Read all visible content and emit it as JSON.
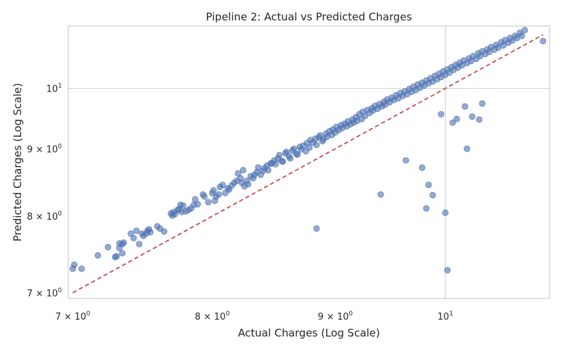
{
  "chart_data": {
    "type": "scatter",
    "title": "Pipeline 2: Actual vs Predicted Charges",
    "xlabel": "Actual Charges (Log Scale)",
    "ylabel": "Predicted Charges (Log Scale)",
    "xscale": "log",
    "yscale": "log",
    "x_ticks": [
      {
        "value": 7,
        "label_base": "7 × 10",
        "label_exp": "0"
      },
      {
        "value": 8,
        "label_base": "8 × 10",
        "label_exp": "0"
      },
      {
        "value": 9,
        "label_base": "9 × 10",
        "label_exp": "0"
      },
      {
        "value": 10,
        "label_base": "10",
        "label_exp": "1"
      }
    ],
    "y_ticks": [
      {
        "value": 7,
        "label_base": "7 × 10",
        "label_exp": "0"
      },
      {
        "value": 8,
        "label_base": "8 × 10",
        "label_exp": "0"
      },
      {
        "value": 9,
        "label_base": "9 × 10",
        "label_exp": "0"
      },
      {
        "value": 10,
        "label_base": "10",
        "label_exp": "1"
      }
    ],
    "xlim": [
      6.97,
      11.05
    ],
    "ylim": [
      6.93,
      11.15
    ],
    "grid": true,
    "colors": {
      "points": "#4c72b0",
      "reference_line": "#c44e52",
      "grid": "#d3d3d3",
      "frame": "#cccccc"
    },
    "reference_line": {
      "style": "dashed",
      "from": [
        7.0,
        7.0
      ],
      "to": [
        10.98,
        10.98
      ]
    },
    "points": [
      [
        7.0,
        7.3
      ],
      [
        7.01,
        7.35
      ],
      [
        7.06,
        7.3
      ],
      [
        7.17,
        7.47
      ],
      [
        7.24,
        7.58
      ],
      [
        7.29,
        7.45
      ],
      [
        7.3,
        7.46
      ],
      [
        7.32,
        7.63
      ],
      [
        7.32,
        7.57
      ],
      [
        7.34,
        7.62
      ],
      [
        7.34,
        7.5
      ],
      [
        7.35,
        7.64
      ],
      [
        7.4,
        7.76
      ],
      [
        7.42,
        7.7
      ],
      [
        7.44,
        7.8
      ],
      [
        7.46,
        7.62
      ],
      [
        7.48,
        7.76
      ],
      [
        7.49,
        7.73
      ],
      [
        7.51,
        7.76
      ],
      [
        7.52,
        7.8
      ],
      [
        7.53,
        7.82
      ],
      [
        7.54,
        7.78
      ],
      [
        7.59,
        7.86
      ],
      [
        7.61,
        7.83
      ],
      [
        7.64,
        7.79
      ],
      [
        7.69,
        8.04
      ],
      [
        7.7,
        8.01
      ],
      [
        7.71,
        8.06
      ],
      [
        7.72,
        8.03
      ],
      [
        7.74,
        8.09
      ],
      [
        7.75,
        8.1
      ],
      [
        7.76,
        8.16
      ],
      [
        7.77,
        8.06
      ],
      [
        7.78,
        8.15
      ],
      [
        7.8,
        8.07
      ],
      [
        7.82,
        8.09
      ],
      [
        7.84,
        8.11
      ],
      [
        7.86,
        8.16
      ],
      [
        7.87,
        8.24
      ],
      [
        7.89,
        8.17
      ],
      [
        7.93,
        8.31
      ],
      [
        7.94,
        8.28
      ],
      [
        7.97,
        8.2
      ],
      [
        8.0,
        8.33
      ],
      [
        8.01,
        8.37
      ],
      [
        8.02,
        8.22
      ],
      [
        8.03,
        8.28
      ],
      [
        8.05,
        8.31
      ],
      [
        8.06,
        8.42
      ],
      [
        8.08,
        8.45
      ],
      [
        8.1,
        8.33
      ],
      [
        8.12,
        8.4
      ],
      [
        8.13,
        8.38
      ],
      [
        8.15,
        8.44
      ],
      [
        8.17,
        8.48
      ],
      [
        8.19,
        8.51
      ],
      [
        8.2,
        8.62
      ],
      [
        8.22,
        8.55
      ],
      [
        8.23,
        8.48
      ],
      [
        8.24,
        8.67
      ],
      [
        8.25,
        8.43
      ],
      [
        8.27,
        8.51
      ],
      [
        8.28,
        8.46
      ],
      [
        8.3,
        8.58
      ],
      [
        8.32,
        8.55
      ],
      [
        8.33,
        8.6
      ],
      [
        8.35,
        8.64
      ],
      [
        8.36,
        8.71
      ],
      [
        8.38,
        8.6
      ],
      [
        8.4,
        8.66
      ],
      [
        8.41,
        8.7
      ],
      [
        8.43,
        8.74
      ],
      [
        8.44,
        8.67
      ],
      [
        8.46,
        8.77
      ],
      [
        8.47,
        8.78
      ],
      [
        8.49,
        8.82
      ],
      [
        8.5,
        8.76
      ],
      [
        8.52,
        8.85
      ],
      [
        8.53,
        8.9
      ],
      [
        8.55,
        8.81
      ],
      [
        8.56,
        8.8
      ],
      [
        8.58,
        8.93
      ],
      [
        8.59,
        8.95
      ],
      [
        8.61,
        8.88
      ],
      [
        8.62,
        8.85
      ],
      [
        8.64,
        8.97
      ],
      [
        8.65,
        9.0
      ],
      [
        8.67,
        8.92
      ],
      [
        8.68,
        8.91
      ],
      [
        8.7,
        9.03
      ],
      [
        8.71,
        8.99
      ],
      [
        8.73,
        9.05
      ],
      [
        8.75,
        8.96
      ],
      [
        8.76,
        9.09
      ],
      [
        8.78,
        9.02
      ],
      [
        8.79,
        9.14
      ],
      [
        8.81,
        9.1
      ],
      [
        8.83,
        9.16
      ],
      [
        8.84,
        9.06
      ],
      [
        8.86,
        9.18
      ],
      [
        8.87,
        9.21
      ],
      [
        8.89,
        9.12
      ],
      [
        8.9,
        9.15
      ],
      [
        8.92,
        9.24
      ],
      [
        8.93,
        9.19
      ],
      [
        8.95,
        9.28
      ],
      [
        8.97,
        9.22
      ],
      [
        8.98,
        9.31
      ],
      [
        9.0,
        9.26
      ],
      [
        9.01,
        9.35
      ],
      [
        9.03,
        9.3
      ],
      [
        9.05,
        9.38
      ],
      [
        9.06,
        9.33
      ],
      [
        9.08,
        9.4
      ],
      [
        9.1,
        9.36
      ],
      [
        9.11,
        9.44
      ],
      [
        9.13,
        9.39
      ],
      [
        9.15,
        9.47
      ],
      [
        9.16,
        9.42
      ],
      [
        9.18,
        9.51
      ],
      [
        9.19,
        9.45
      ],
      [
        9.21,
        9.56
      ],
      [
        9.23,
        9.48
      ],
      [
        9.24,
        9.6
      ],
      [
        9.26,
        9.53
      ],
      [
        9.28,
        9.63
      ],
      [
        9.3,
        9.58
      ],
      [
        9.32,
        9.66
      ],
      [
        9.33,
        9.62
      ],
      [
        9.35,
        9.7
      ],
      [
        9.37,
        9.65
      ],
      [
        9.39,
        9.73
      ],
      [
        9.41,
        9.69
      ],
      [
        9.43,
        9.77
      ],
      [
        9.44,
        9.72
      ],
      [
        9.46,
        9.81
      ],
      [
        9.48,
        9.76
      ],
      [
        9.5,
        9.84
      ],
      [
        9.52,
        9.8
      ],
      [
        9.54,
        9.88
      ],
      [
        9.56,
        9.83
      ],
      [
        9.58,
        9.92
      ],
      [
        9.6,
        9.87
      ],
      [
        9.62,
        9.95
      ],
      [
        9.64,
        9.9
      ],
      [
        9.66,
        9.99
      ],
      [
        9.68,
        9.94
      ],
      [
        9.7,
        10.03
      ],
      [
        9.72,
        9.97
      ],
      [
        9.74,
        10.07
      ],
      [
        9.76,
        10.01
      ],
      [
        9.78,
        10.1
      ],
      [
        9.8,
        10.05
      ],
      [
        9.82,
        10.14
      ],
      [
        9.84,
        10.09
      ],
      [
        9.86,
        10.18
      ],
      [
        9.88,
        10.12
      ],
      [
        9.9,
        10.22
      ],
      [
        9.92,
        10.16
      ],
      [
        9.94,
        10.26
      ],
      [
        9.96,
        10.2
      ],
      [
        9.98,
        10.3
      ],
      [
        10.0,
        10.24
      ],
      [
        10.02,
        10.34
      ],
      [
        10.04,
        10.28
      ],
      [
        10.06,
        10.38
      ],
      [
        10.08,
        10.33
      ],
      [
        10.1,
        10.42
      ],
      [
        10.12,
        10.37
      ],
      [
        10.14,
        10.46
      ],
      [
        10.16,
        10.41
      ],
      [
        10.18,
        10.5
      ],
      [
        10.21,
        10.45
      ],
      [
        10.23,
        10.54
      ],
      [
        10.25,
        10.49
      ],
      [
        10.27,
        10.58
      ],
      [
        10.3,
        10.53
      ],
      [
        10.32,
        10.63
      ],
      [
        10.34,
        10.58
      ],
      [
        10.36,
        10.67
      ],
      [
        10.39,
        10.62
      ],
      [
        10.41,
        10.71
      ],
      [
        10.43,
        10.66
      ],
      [
        10.45,
        10.75
      ],
      [
        10.48,
        10.7
      ],
      [
        10.5,
        10.79
      ],
      [
        10.52,
        10.74
      ],
      [
        10.55,
        10.84
      ],
      [
        10.57,
        10.78
      ],
      [
        10.59,
        10.88
      ],
      [
        10.62,
        10.83
      ],
      [
        10.64,
        10.92
      ],
      [
        10.66,
        10.87
      ],
      [
        10.69,
        10.96
      ],
      [
        10.71,
        10.92
      ],
      [
        10.74,
        11.02
      ],
      [
        10.76,
        10.96
      ],
      [
        10.79,
        11.07
      ],
      [
        10.98,
        10.86
      ],
      [
        8.84,
        7.83
      ],
      [
        9.4,
        8.31
      ],
      [
        9.63,
        8.82
      ],
      [
        9.78,
        8.71
      ],
      [
        9.82,
        8.11
      ],
      [
        9.84,
        8.45
      ],
      [
        9.88,
        8.3
      ],
      [
        9.96,
        9.56
      ],
      [
        10.0,
        8.05
      ],
      [
        10.02,
        7.28
      ],
      [
        10.07,
        9.42
      ],
      [
        10.11,
        9.48
      ],
      [
        10.19,
        9.69
      ],
      [
        10.26,
        9.52
      ],
      [
        10.33,
        9.47
      ],
      [
        10.36,
        9.74
      ],
      [
        10.21,
        9.0
      ]
    ]
  }
}
